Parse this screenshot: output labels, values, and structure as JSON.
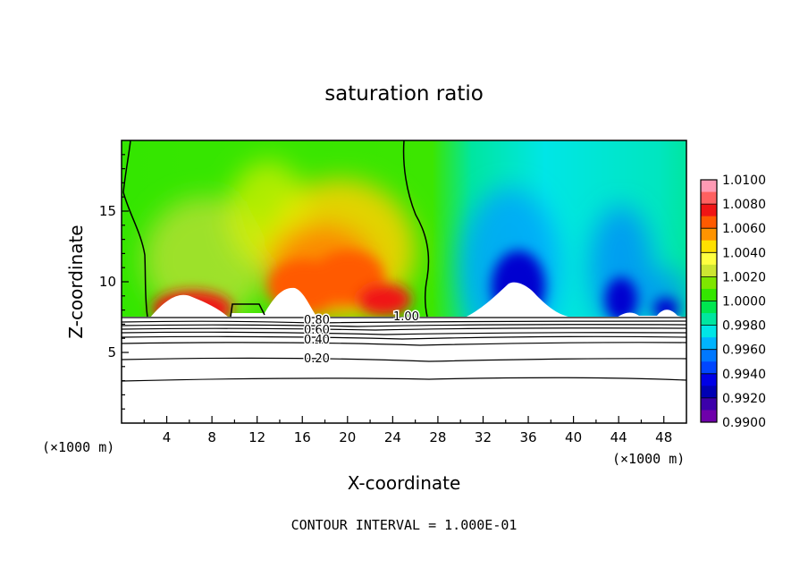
{
  "chart_data": {
    "type": "heatmap",
    "title": "saturation ratio",
    "xlabel": "X-coordinate",
    "ylabel": "Z-coordinate",
    "x_unit_left": "(×1000 m)",
    "x_unit_right": "(×1000 m)",
    "xlim": [
      0,
      50
    ],
    "ylim": [
      0,
      20
    ],
    "x_ticks": [
      4,
      8,
      12,
      16,
      20,
      24,
      28,
      32,
      36,
      40,
      44,
      48
    ],
    "y_ticks": [
      5,
      10,
      15
    ],
    "colorbar": {
      "levels": [
        "1.0100",
        "1.0080",
        "1.0060",
        "1.0040",
        "1.0020",
        "1.0000",
        "0.9980",
        "0.9960",
        "0.9940",
        "0.9920",
        "0.9900"
      ],
      "colors": [
        "#ff9ab4",
        "#ff6060",
        "#f01414",
        "#ff5a00",
        "#ff9400",
        "#ffe000",
        "#ffff40",
        "#cde632",
        "#7ee600",
        "#34e600",
        "#00e650",
        "#00e6a0",
        "#00e6e6",
        "#00b4ff",
        "#0078ff",
        "#0046ff",
        "#0000e6",
        "#0000b4",
        "#3c00aa",
        "#6e00aa"
      ]
    },
    "contour_labels": [
      "1.00",
      "0.80",
      "0.60",
      "0.40",
      "0.20"
    ],
    "footer": "CONTOUR INTERVAL = 1.000E-01"
  }
}
